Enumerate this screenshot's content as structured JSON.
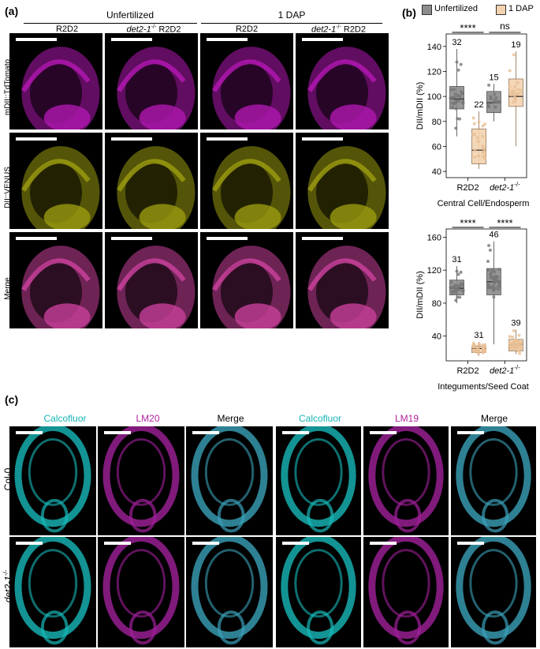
{
  "panel_a": {
    "letter": "(a)",
    "groups": [
      "Unfertilized",
      "1 DAP"
    ],
    "columns": [
      {
        "prefix": "",
        "italic": "",
        "suffix": "R2D2"
      },
      {
        "prefix": "",
        "italic": "det2-1",
        "sup": "-/-",
        "suffix": " R2D2"
      },
      {
        "prefix": "",
        "italic": "",
        "suffix": "R2D2"
      },
      {
        "prefix": "",
        "italic": "det2-1",
        "sup": "-/-",
        "suffix": " R2D2"
      }
    ],
    "rows": [
      "mDII::TdTomato",
      "DII::VENUS",
      "Merge"
    ]
  },
  "panel_b": {
    "letter": "(b)",
    "legend": [
      {
        "label": "Unfertilized",
        "color": "#8c8c8c"
      },
      {
        "label": "1 DAP",
        "color": "#f3d3b0"
      }
    ]
  },
  "panel_c": {
    "letter": "(c)",
    "columns_left": [
      {
        "label": "Calcofluor",
        "color": "#16b5b5"
      },
      {
        "label": "LM20",
        "color": "#b0239f"
      },
      {
        "label": "Merge",
        "color": "#000000"
      }
    ],
    "columns_right": [
      {
        "label": "Calcofluor",
        "color": "#16b5b5"
      },
      {
        "label": "LM19",
        "color": "#b0239f"
      },
      {
        "label": "Merge",
        "color": "#000000"
      }
    ],
    "rows": [
      {
        "italic": "",
        "text": "Col-0"
      },
      {
        "italic": "det2-1",
        "sup": "-/-"
      }
    ]
  },
  "chart_data": [
    {
      "type": "box",
      "ylabel": "DII/mDII (%)",
      "xlabel": "Central Cell/Endosperm",
      "ylim": [
        35,
        150
      ],
      "yticks": [
        40,
        60,
        80,
        100,
        120,
        140
      ],
      "categories": [
        "R2D2",
        "det2-1-/-"
      ],
      "series": [
        {
          "name": "Unfertilized",
          "boxes": [
            {
              "category": "R2D2",
              "min": 68,
              "q1": 90,
              "median": 98,
              "q3": 108,
              "max": 138,
              "n": "32"
            },
            {
              "category": "det2-1-/-",
              "min": 80,
              "q1": 87,
              "median": 95,
              "q3": 104,
              "max": 110,
              "n": "15"
            }
          ]
        },
        {
          "name": "1 DAP",
          "boxes": [
            {
              "category": "R2D2",
              "min": 42,
              "q1": 46,
              "median": 57,
              "q3": 74,
              "max": 88,
              "n": "22"
            },
            {
              "category": "det2-1-/-",
              "min": 60,
              "q1": 92,
              "median": 100,
              "q3": 114,
              "max": 136,
              "n": "19"
            }
          ]
        }
      ],
      "significance": [
        {
          "category": "R2D2",
          "label": "****"
        },
        {
          "category": "det2-1-/-",
          "label": "ns"
        }
      ]
    },
    {
      "type": "box",
      "ylabel": "DII/mDII (%)",
      "xlabel": "Integuments/Seed Coat",
      "ylim": [
        10,
        170
      ],
      "yticks": [
        40,
        80,
        120,
        160
      ],
      "categories": [
        "R2D2",
        "det2-1-/-"
      ],
      "series": [
        {
          "name": "Unfertilized",
          "boxes": [
            {
              "category": "R2D2",
              "min": 80,
              "q1": 90,
              "median": 98,
              "q3": 108,
              "max": 125,
              "n": "31"
            },
            {
              "category": "det2-1-/-",
              "min": 30,
              "q1": 90,
              "median": 106,
              "q3": 122,
              "max": 155,
              "n": "46"
            }
          ]
        },
        {
          "name": "1 DAP",
          "boxes": [
            {
              "category": "R2D2",
              "min": 16,
              "q1": 20,
              "median": 25,
              "q3": 28,
              "max": 33,
              "n": "31"
            },
            {
              "category": "det2-1-/-",
              "min": 18,
              "q1": 22,
              "median": 30,
              "q3": 36,
              "max": 48,
              "n": "39"
            }
          ]
        }
      ],
      "significance": [
        {
          "category": "R2D2",
          "label": "****"
        },
        {
          "category": "det2-1-/-",
          "label": "****"
        }
      ]
    }
  ]
}
